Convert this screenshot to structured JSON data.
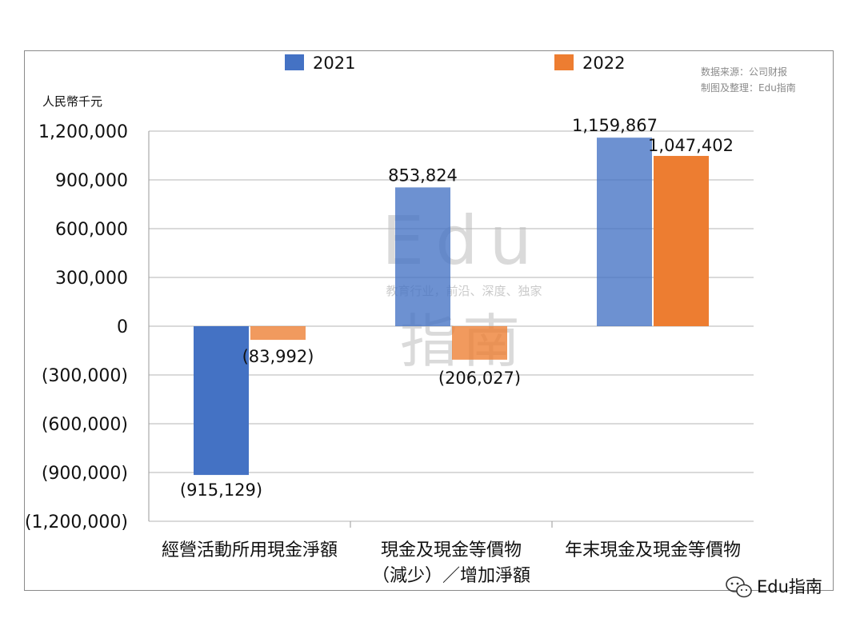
{
  "unit_label": "人民幣千元",
  "source_lines": [
    "数据来源：公司财报",
    "制图及整理：Edu指南"
  ],
  "watermark": {
    "logo": "Edu",
    "logo_cn": "指南",
    "tagline": "教育行业，前沿、深度、独家"
  },
  "brand_badge": "Edu指南",
  "chart_data": {
    "type": "bar",
    "title": "",
    "xlabel": "",
    "ylabel": "人民幣千元",
    "categories": [
      [
        "經營活動所用現金淨額"
      ],
      [
        "現金及現金等價物",
        "（減少）／增加淨額"
      ],
      [
        "年末現金及現金等價物"
      ]
    ],
    "series": [
      {
        "name": "2021",
        "color": "#4472C4",
        "values": [
          -915129,
          853824,
          1159867
        ],
        "labels": [
          "(915,129)",
          "853,824",
          "1,159,867"
        ]
      },
      {
        "name": "2022",
        "color": "#ED7D31",
        "values": [
          -83992,
          -206027,
          1047402
        ],
        "labels": [
          "(83,992)",
          "(206,027)",
          "1,047,402"
        ]
      }
    ],
    "ylim": [
      -1200000,
      1200000
    ],
    "yticks": [
      1200000,
      900000,
      600000,
      300000,
      0,
      -300000,
      -600000,
      -900000,
      -1200000
    ],
    "ytick_labels": [
      "1,200,000",
      "900,000",
      "600,000",
      "300,000",
      "0",
      "(300,000)",
      "(600,000)",
      "(900,000)",
      "(1,200,000)"
    ],
    "grid": true,
    "legend_position": "top"
  }
}
